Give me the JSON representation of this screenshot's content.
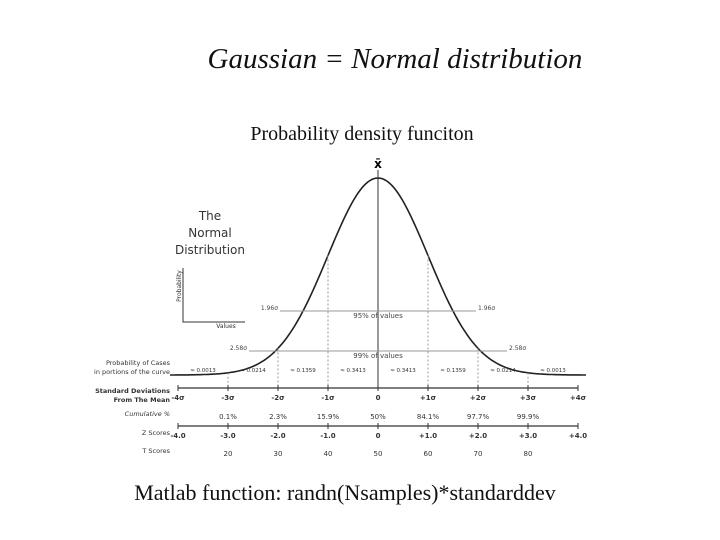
{
  "slide": {
    "title": "Gaussian = Normal distribution",
    "subtitle": "Probability density funciton",
    "caption": "Matlab function: randn(Nsamples)*standarddev"
  },
  "figure": {
    "heading": [
      "The",
      "Normal",
      "Distribution"
    ],
    "mean_label": "x̄",
    "inset_axes": {
      "y": "Probability",
      "x": "Values"
    },
    "interval_95": {
      "left": "1.96σ",
      "right": "1.96σ",
      "label": "95% of values"
    },
    "interval_99": {
      "left": "2.58σ",
      "right": "2.58σ",
      "label": "99% of values"
    },
    "rows": [
      {
        "label": [
          "Probability of Cases",
          "in portions of the curve"
        ],
        "values": [
          "≈ 0.0013",
          "≈ 0.0214",
          "≈ 0.1359",
          "≈ 0.3413",
          "≈ 0.3413",
          "≈ 0.1359",
          "≈ 0.0214",
          "≈ 0.0013"
        ]
      },
      {
        "label": [
          "Standard Deviations",
          "From The Mean"
        ],
        "values": [
          "-4σ",
          "-3σ",
          "-2σ",
          "-1σ",
          "0",
          "+1σ",
          "+2σ",
          "+3σ",
          "+4σ"
        ]
      },
      {
        "label": [
          "Cumulative %"
        ],
        "values": [
          "0.1%",
          "2.3%",
          "15.9%",
          "50%",
          "84.1%",
          "97.7%",
          "99.9%"
        ]
      },
      {
        "label": [
          "Z Scores"
        ],
        "values": [
          "-4.0",
          "-3.0",
          "-2.0",
          "-1.0",
          "0",
          "+1.0",
          "+2.0",
          "+3.0",
          "+4.0"
        ]
      },
      {
        "label": [
          "T Scores"
        ],
        "values": [
          "20",
          "30",
          "40",
          "50",
          "60",
          "70",
          "80"
        ]
      }
    ]
  }
}
